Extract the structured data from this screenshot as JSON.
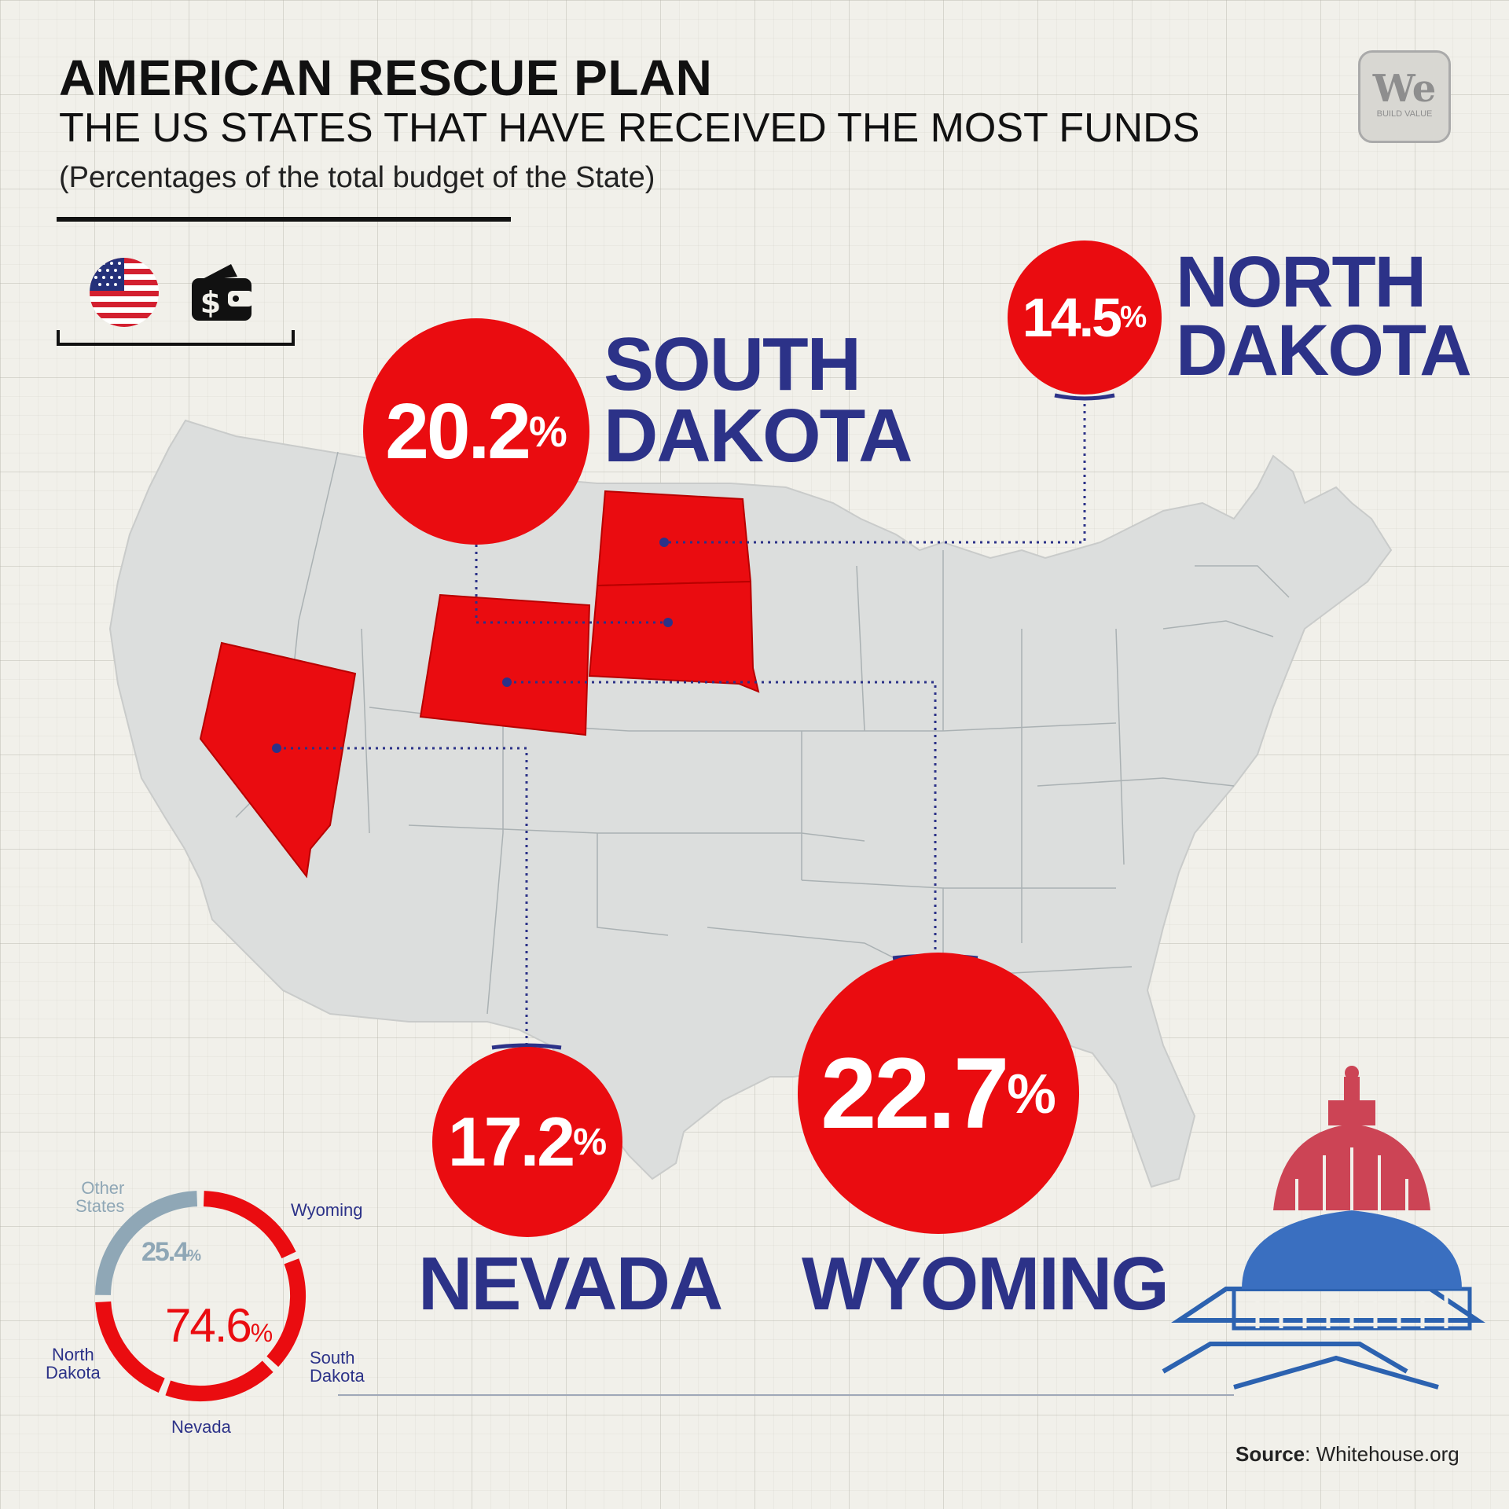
{
  "header": {
    "title": "AMERICAN RESCUE PLAN",
    "subtitle": "THE US STATES THAT HAVE RECEIVED THE MOST FUNDS",
    "note": "(Percentages of the total budget of the State)"
  },
  "logo": {
    "mark": "We",
    "tagline": "BUILD VALUE"
  },
  "icons": [
    "us-flag-icon",
    "wallet-dollar-icon",
    "capitol-dome-icon"
  ],
  "colors": {
    "highlight": "#ea0c10",
    "label_blue": "#2c3288",
    "other_gray": "#8fa7b6",
    "map_gray": "#dcdedd"
  },
  "callouts": [
    {
      "state": "SOUTH DAKOTA",
      "line1": "SOUTH",
      "line2": "DAKOTA",
      "value": 20.2,
      "number": "20.2",
      "unit": "%"
    },
    {
      "state": "NORTH DAKOTA",
      "line1": "NORTH",
      "line2": "DAKOTA",
      "value": 14.5,
      "number": "14.5",
      "unit": "%"
    },
    {
      "state": "NEVADA",
      "line1": "NEVADA",
      "value": 17.2,
      "number": "17.2",
      "unit": "%"
    },
    {
      "state": "WYOMING",
      "line1": "WYOMING",
      "value": 22.7,
      "number": "22.7",
      "unit": "%"
    }
  ],
  "donut": {
    "highlight_share": 74.6,
    "highlight_number": "74.6",
    "other_share": 25.4,
    "other_number": "25.4",
    "unit": "%",
    "labels": {
      "other": [
        "Other",
        "States"
      ],
      "wyoming": "Wyoming",
      "south_dakota": [
        "South",
        "Dakota"
      ],
      "nevada": "Nevada",
      "north_dakota": [
        "North",
        "Dakota"
      ]
    }
  },
  "source": {
    "label": "Source",
    "value": ": Whitehouse.org"
  }
}
